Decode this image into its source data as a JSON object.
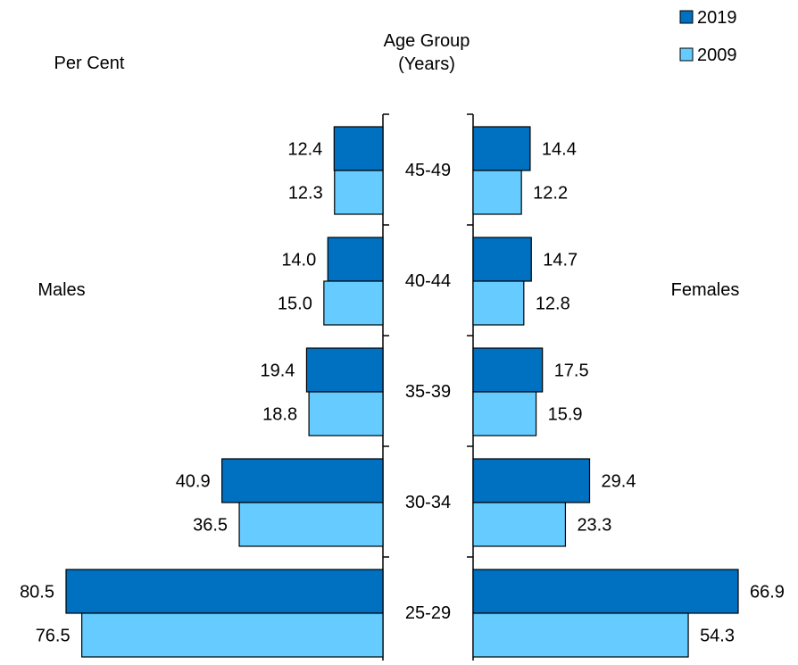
{
  "chart_data": {
    "type": "bar",
    "orientation": "horizontal-pyramid",
    "ylabel": "Age Group\n(Years)",
    "xlabel": "Per Cent",
    "left_group": "Males",
    "right_group": "Females",
    "categories": [
      "45-49",
      "40-44",
      "35-39",
      "30-34",
      "25-29"
    ],
    "series": [
      {
        "name": "2019",
        "color": "#0070C0",
        "males": [
          12.4,
          14.0,
          19.4,
          40.9,
          80.5
        ],
        "females": [
          14.4,
          14.7,
          17.5,
          29.4,
          66.9
        ]
      },
      {
        "name": "2009",
        "color": "#66CCFF",
        "males": [
          12.3,
          15.0,
          18.8,
          36.5,
          76.5
        ],
        "females": [
          12.2,
          12.8,
          15.9,
          23.3,
          54.3
        ]
      }
    ],
    "legend_position": "top-right",
    "grid": false
  }
}
